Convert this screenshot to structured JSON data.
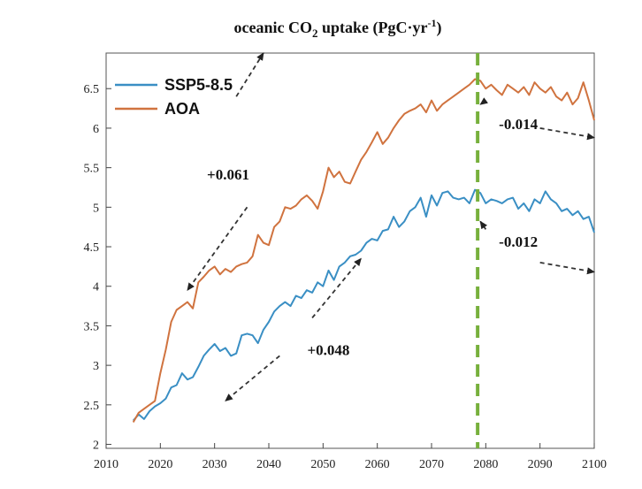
{
  "chart_data": {
    "type": "line",
    "title": {
      "main": "oceanic CO",
      "sub": "2",
      "rest": " uptake (PgC·yr",
      "sup": "-1",
      "close": ")"
    },
    "xlabel": "",
    "ylabel": "",
    "xlim": [
      2010,
      2100
    ],
    "ylim": [
      1.95,
      6.95
    ],
    "xticks": [
      "2010",
      "2020",
      "2030",
      "2040",
      "2050",
      "2060",
      "2070",
      "2080",
      "2090",
      "2100"
    ],
    "yticks": [
      "2",
      "2.5",
      "3",
      "3.5",
      "4",
      "4.5",
      "5",
      "5.5",
      "6",
      "6.5"
    ],
    "grid": false,
    "legend_position": "top-left",
    "vline_x": 2078.5,
    "series": [
      {
        "name": "SSP5-8.5",
        "color": "#3a8fc4",
        "x": [
          2015,
          2016,
          2017,
          2018,
          2019,
          2020,
          2021,
          2022,
          2023,
          2024,
          2025,
          2026,
          2027,
          2028,
          2029,
          2030,
          2031,
          2032,
          2033,
          2034,
          2035,
          2036,
          2037,
          2038,
          2039,
          2040,
          2041,
          2042,
          2043,
          2044,
          2045,
          2046,
          2047,
          2048,
          2049,
          2050,
          2051,
          2052,
          2053,
          2054,
          2055,
          2056,
          2057,
          2058,
          2059,
          2060,
          2061,
          2062,
          2063,
          2064,
          2065,
          2066,
          2067,
          2068,
          2069,
          2070,
          2071,
          2072,
          2073,
          2074,
          2075,
          2076,
          2077,
          2078,
          2079,
          2080,
          2081,
          2082,
          2083,
          2084,
          2085,
          2086,
          2087,
          2088,
          2089,
          2090,
          2091,
          2092,
          2093,
          2094,
          2095,
          2096,
          2097,
          2098,
          2099,
          2100
        ],
        "values": [
          2.3,
          2.38,
          2.32,
          2.42,
          2.48,
          2.52,
          2.58,
          2.72,
          2.75,
          2.9,
          2.82,
          2.85,
          2.98,
          3.12,
          3.2,
          3.27,
          3.18,
          3.22,
          3.12,
          3.15,
          3.38,
          3.4,
          3.38,
          3.28,
          3.45,
          3.55,
          3.68,
          3.75,
          3.8,
          3.75,
          3.88,
          3.85,
          3.95,
          3.92,
          4.05,
          4.0,
          4.2,
          4.08,
          4.25,
          4.3,
          4.38,
          4.4,
          4.45,
          4.55,
          4.6,
          4.58,
          4.7,
          4.72,
          4.88,
          4.75,
          4.82,
          4.95,
          5.0,
          5.12,
          4.88,
          5.15,
          5.02,
          5.18,
          5.2,
          5.12,
          5.1,
          5.12,
          5.05,
          5.22,
          5.18,
          5.05,
          5.1,
          5.08,
          5.05,
          5.1,
          5.12,
          4.98,
          5.05,
          4.95,
          5.1,
          5.05,
          5.2,
          5.1,
          5.05,
          4.95,
          4.98,
          4.9,
          4.95,
          4.85,
          4.88,
          4.68
        ]
      },
      {
        "name": "AOA",
        "color": "#d0733f",
        "x": [
          2015,
          2016,
          2017,
          2018,
          2019,
          2020,
          2021,
          2022,
          2023,
          2024,
          2025,
          2026,
          2027,
          2028,
          2029,
          2030,
          2031,
          2032,
          2033,
          2034,
          2035,
          2036,
          2037,
          2038,
          2039,
          2040,
          2041,
          2042,
          2043,
          2044,
          2045,
          2046,
          2047,
          2048,
          2049,
          2050,
          2051,
          2052,
          2053,
          2054,
          2055,
          2056,
          2057,
          2058,
          2059,
          2060,
          2061,
          2062,
          2063,
          2064,
          2065,
          2066,
          2067,
          2068,
          2069,
          2070,
          2071,
          2072,
          2073,
          2074,
          2075,
          2076,
          2077,
          2078,
          2079,
          2080,
          2081,
          2082,
          2083,
          2084,
          2085,
          2086,
          2087,
          2088,
          2089,
          2090,
          2091,
          2092,
          2093,
          2094,
          2095,
          2096,
          2097,
          2098,
          2099,
          2100
        ],
        "values": [
          2.28,
          2.4,
          2.45,
          2.5,
          2.55,
          2.9,
          3.2,
          3.55,
          3.7,
          3.75,
          3.8,
          3.72,
          4.05,
          4.12,
          4.2,
          4.25,
          4.15,
          4.22,
          4.18,
          4.25,
          4.28,
          4.3,
          4.38,
          4.65,
          4.55,
          4.52,
          4.75,
          4.82,
          5.0,
          4.98,
          5.02,
          5.1,
          5.15,
          5.08,
          4.98,
          5.2,
          5.5,
          5.38,
          5.45,
          5.32,
          5.3,
          5.45,
          5.6,
          5.7,
          5.82,
          5.95,
          5.8,
          5.88,
          6.0,
          6.1,
          6.18,
          6.22,
          6.25,
          6.3,
          6.2,
          6.35,
          6.22,
          6.3,
          6.35,
          6.4,
          6.45,
          6.5,
          6.55,
          6.62,
          6.6,
          6.5,
          6.55,
          6.48,
          6.42,
          6.55,
          6.5,
          6.45,
          6.52,
          6.42,
          6.58,
          6.5,
          6.45,
          6.52,
          6.4,
          6.35,
          6.45,
          6.3,
          6.38,
          6.58,
          6.35,
          6.1
        ]
      }
    ],
    "annotations": [
      {
        "text": "+0.061",
        "x": 2032.5,
        "y": 5.35,
        "arrow": [
          [
            2030.5,
            5.5
          ],
          [
            2037.5,
            6.15
          ]
        ]
      },
      {
        "text": "+0.048",
        "x": 2051,
        "y": 3.13,
        "arrow": [
          [
            2052.5,
            3.52
          ],
          [
            2058,
            3.79
          ]
        ]
      },
      {
        "text": "-0.014",
        "x": 2086,
        "y": 5.99,
        "arrow": [
          [
            2086,
            6.08
          ],
          [
            2089.5,
            5.9
          ]
        ]
      },
      {
        "text": "-0.012",
        "x": 2086,
        "y": 4.5,
        "arrow": [
          [
            2085,
            4.59
          ],
          [
            2089,
            4.38
          ]
        ]
      }
    ],
    "arrows": [
      {
        "from": [
          2036,
          5.0
        ],
        "to": [
          2025,
          3.95
        ]
      },
      {
        "from": [
          2034,
          6.4
        ],
        "to": [
          2039,
          6.95
        ]
      },
      {
        "from": [
          2042,
          3.12
        ],
        "to": [
          2032,
          2.55
        ]
      },
      {
        "from": [
          2048,
          3.6
        ],
        "to": [
          2057,
          4.35
        ]
      },
      {
        "from": [
          2080,
          6.35
        ],
        "to": [
          2079,
          6.3
        ]
      },
      {
        "from": [
          2090,
          6.0
        ],
        "to": [
          2100,
          5.88
        ]
      },
      {
        "from": [
          2080,
          4.72
        ],
        "to": [
          2079,
          4.82
        ]
      },
      {
        "from": [
          2090,
          4.3
        ],
        "to": [
          2100,
          4.18
        ]
      }
    ]
  }
}
